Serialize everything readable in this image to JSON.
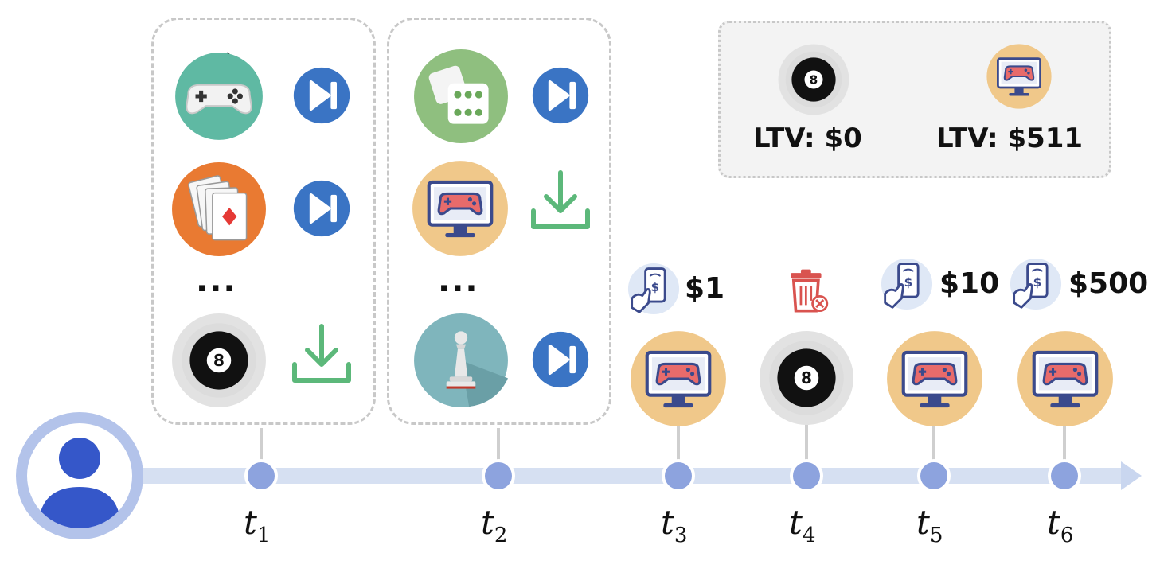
{
  "groups": [
    {
      "time": "t1",
      "items": [
        {
          "app": "gamepad-app-icon",
          "action": "skip-icon"
        },
        {
          "app": "cards-app-icon",
          "action": "skip-icon"
        },
        {
          "app": "billiard-8-ball-app-icon",
          "action": "download-icon"
        }
      ],
      "ellipsis": "..."
    },
    {
      "time": "t2",
      "items": [
        {
          "app": "dice-app-icon",
          "action": "skip-icon"
        },
        {
          "app": "monitor-game-app-icon",
          "action": "download-icon"
        },
        {
          "app": "chess-pawn-app-icon",
          "action": "skip-icon"
        }
      ],
      "ellipsis": "..."
    }
  ],
  "legend": {
    "ball_ltv": "LTV: $0",
    "monitor_ltv": "LTV: $511"
  },
  "events": {
    "t3": {
      "payment": "$1",
      "app": "monitor-game-app-icon"
    },
    "t4": {
      "action": "uninstall-trash-icon",
      "app": "billiard-8-ball-app-icon"
    },
    "t5": {
      "payment": "$10",
      "app": "monitor-game-app-icon"
    },
    "t6": {
      "payment": "$500",
      "app": "monitor-game-app-icon"
    }
  },
  "time_labels": {
    "t1": {
      "base": "t",
      "sub": "1"
    },
    "t2": {
      "base": "t",
      "sub": "2"
    },
    "t3": {
      "base": "t",
      "sub": "3"
    },
    "t4": {
      "base": "t",
      "sub": "4"
    },
    "t5": {
      "base": "t",
      "sub": "5"
    },
    "t6": {
      "base": "t",
      "sub": "6"
    }
  },
  "colors": {
    "timeline": "#d6e0f2",
    "node": "#8da3de",
    "user": "#3557c9",
    "skip": "#3a74c4",
    "download": "#5cb87a",
    "monitor_bg": "#f0c88a",
    "trash": "#d9534f"
  }
}
